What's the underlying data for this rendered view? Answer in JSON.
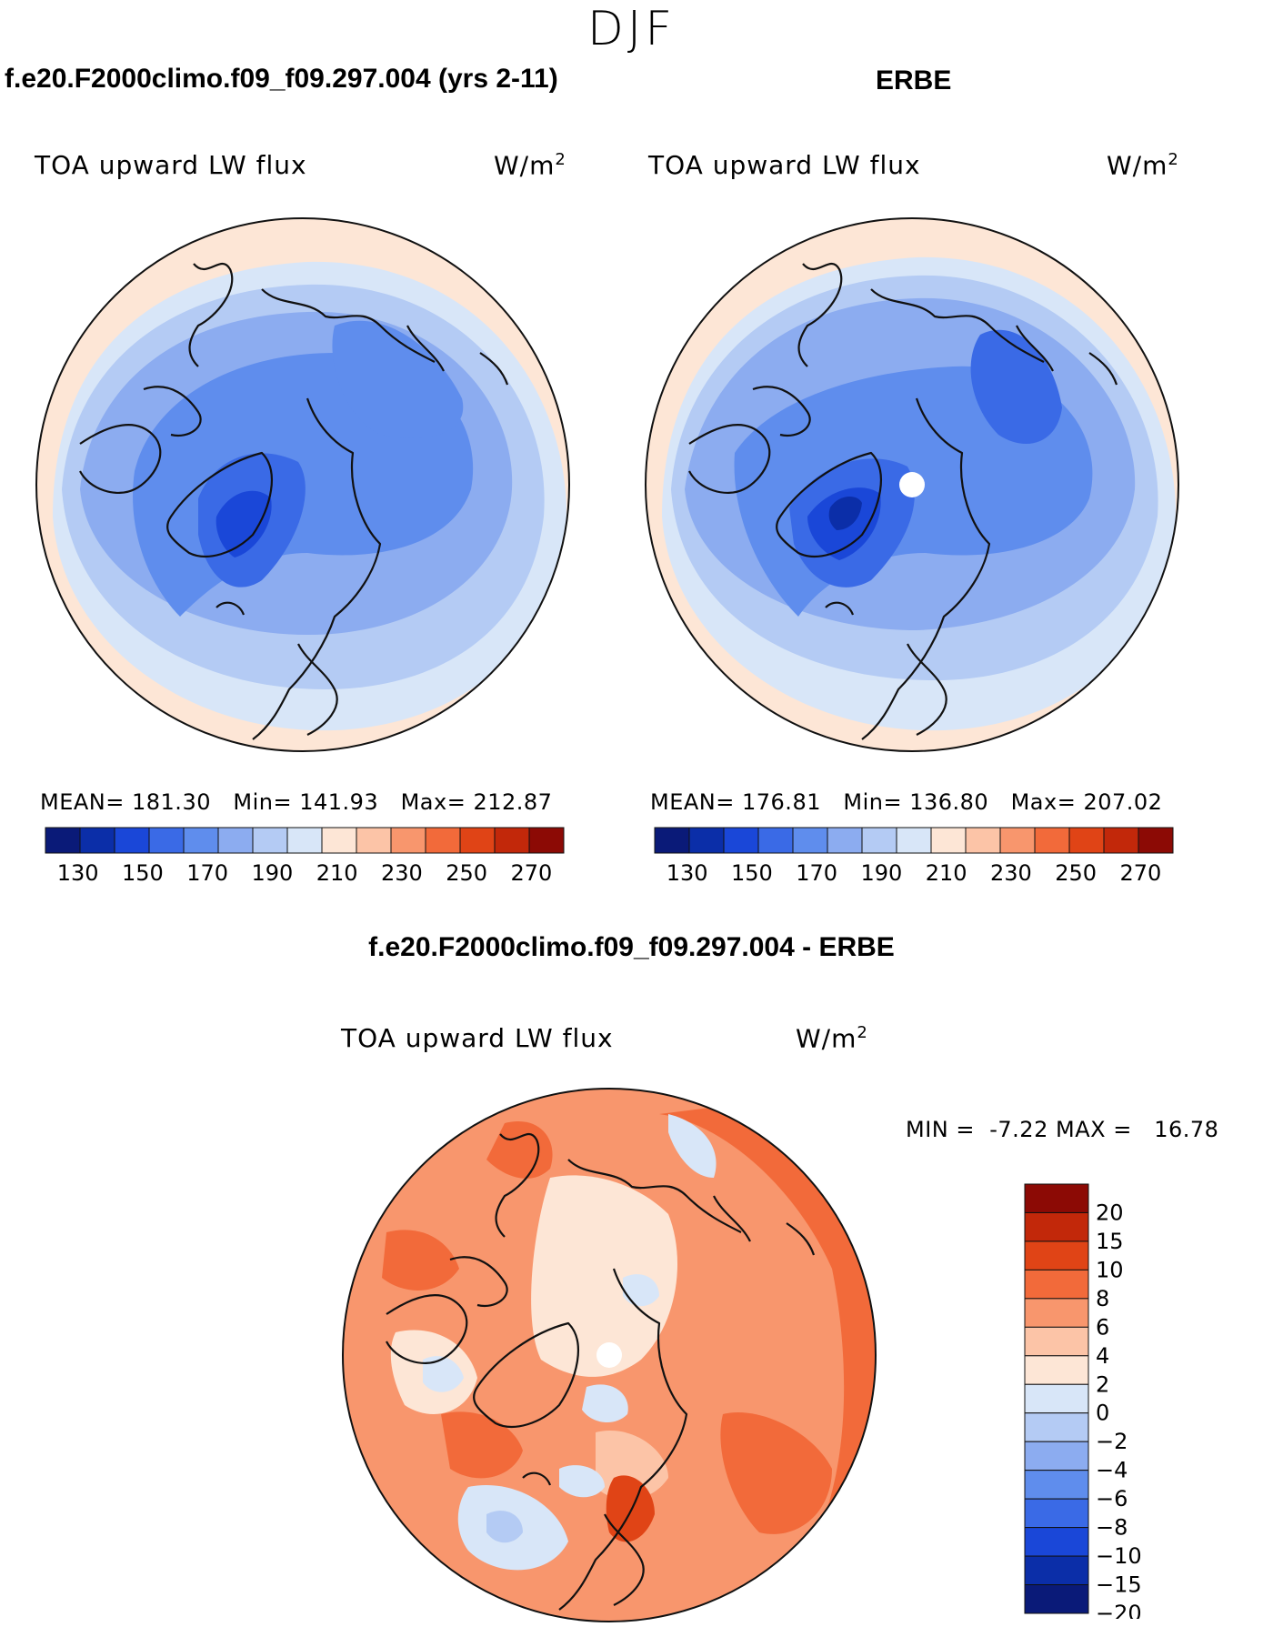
{
  "figure": {
    "season": "DJF",
    "units_label": "W/m",
    "units_exponent": "2",
    "variable": "TOA upward LW flux"
  },
  "panels": {
    "model": {
      "case_title": "f.e20.F2000climo.f09_f09.297.004 (yrs 2-11)",
      "mean_label": "MEAN=",
      "mean_value": "181.30",
      "min_label": "Min=",
      "min_value": "141.93",
      "max_label": "Max=",
      "max_value": "212.87"
    },
    "obs": {
      "case_title": "ERBE",
      "mean_label": "MEAN=",
      "mean_value": "176.81",
      "min_label": "Min=",
      "min_value": "136.80",
      "max_label": "Max=",
      "max_value": "207.02"
    },
    "diff": {
      "case_title": "f.e20.F2000climo.f09_f09.297.004 - ERBE",
      "min_label": "MIN =",
      "min_value": "-7.22",
      "max_label": "MAX =",
      "max_value": "16.78"
    }
  },
  "abs_colorbar": {
    "colors": [
      "#0a1a78",
      "#0b2ea8",
      "#1a47d8",
      "#3a6ae6",
      "#5f8ded",
      "#8cacf0",
      "#b4cbf4",
      "#d8e6f8",
      "#fde6d6",
      "#fcc4a7",
      "#f8966d",
      "#f26a3a",
      "#e04416",
      "#c2280a",
      "#8c0a05"
    ],
    "tick_values": [
      "130",
      "150",
      "170",
      "190",
      "210",
      "230",
      "250",
      "270"
    ],
    "boundaries": [
      120,
      130,
      140,
      150,
      160,
      170,
      180,
      190,
      200,
      210,
      220,
      230,
      240,
      250,
      260,
      270,
      280
    ]
  },
  "diff_colorbar": {
    "colors": [
      "#0a1a78",
      "#0b2ea8",
      "#1a47d8",
      "#3a6ae6",
      "#5f8ded",
      "#8cacf0",
      "#b4cbf4",
      "#d8e6f8",
      "#fde6d6",
      "#fcc4a7",
      "#f8966d",
      "#f26a3a",
      "#e04416",
      "#c2280a",
      "#8c0a05"
    ],
    "levels": [
      "20",
      "15",
      "10",
      "8",
      "6",
      "4",
      "2",
      "0",
      "−2",
      "−4",
      "−6",
      "−8",
      "−10",
      "−15",
      "−20"
    ]
  },
  "colors": {
    "land_outline": "#111111",
    "pole_hole": "#ffffff",
    "abs_outer": "#fde6d6",
    "abs_ring1": "#d8e6f8",
    "abs_ring2": "#b4cbf4",
    "abs_ring3": "#8cacf0",
    "abs_ring4": "#5f8ded",
    "abs_ring5": "#3a6ae6",
    "abs_ring6": "#1a47d8",
    "diff_base": "#f8966d",
    "diff_light": "#fcc4a7",
    "diff_neutral": "#fde6d6",
    "diff_strong": "#f26a3a",
    "diff_neg": "#d8e6f8",
    "diff_neg2": "#b4cbf4"
  }
}
